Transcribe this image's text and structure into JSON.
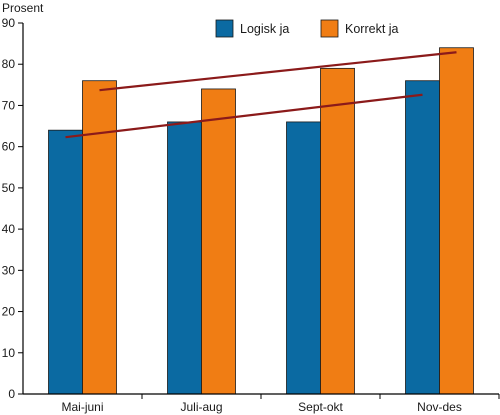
{
  "chart_data": {
    "type": "bar",
    "ylabel": "Prosent",
    "xlabel": "",
    "title": "",
    "ylim": [
      0,
      90
    ],
    "yticks": [
      0,
      10,
      20,
      30,
      40,
      50,
      60,
      70,
      80,
      90
    ],
    "categories": [
      "Mai-juni",
      "Juli-aug",
      "Sept-okt",
      "Nov-des"
    ],
    "series": [
      {
        "name": "Logisk ja",
        "color": "#0b6aa2",
        "values": [
          64,
          66,
          66,
          76
        ]
      },
      {
        "name": "Korrekt ja",
        "color": "#f07d14",
        "values": [
          76,
          74,
          79,
          84
        ]
      }
    ],
    "trendlines": [
      {
        "series": "Logisk ja",
        "color": "#8b1a1a",
        "from_category": "Mai-juni",
        "to_category": "Nov-des",
        "y_start": 62.3,
        "y_end": 72.6
      },
      {
        "series": "Korrekt ja",
        "color": "#8b1a1a",
        "from_category": "Mai-juni",
        "to_category": "Nov-des",
        "y_start": 73.7,
        "y_end": 82.9
      }
    ],
    "legend_position": "top-right",
    "grid": false
  }
}
